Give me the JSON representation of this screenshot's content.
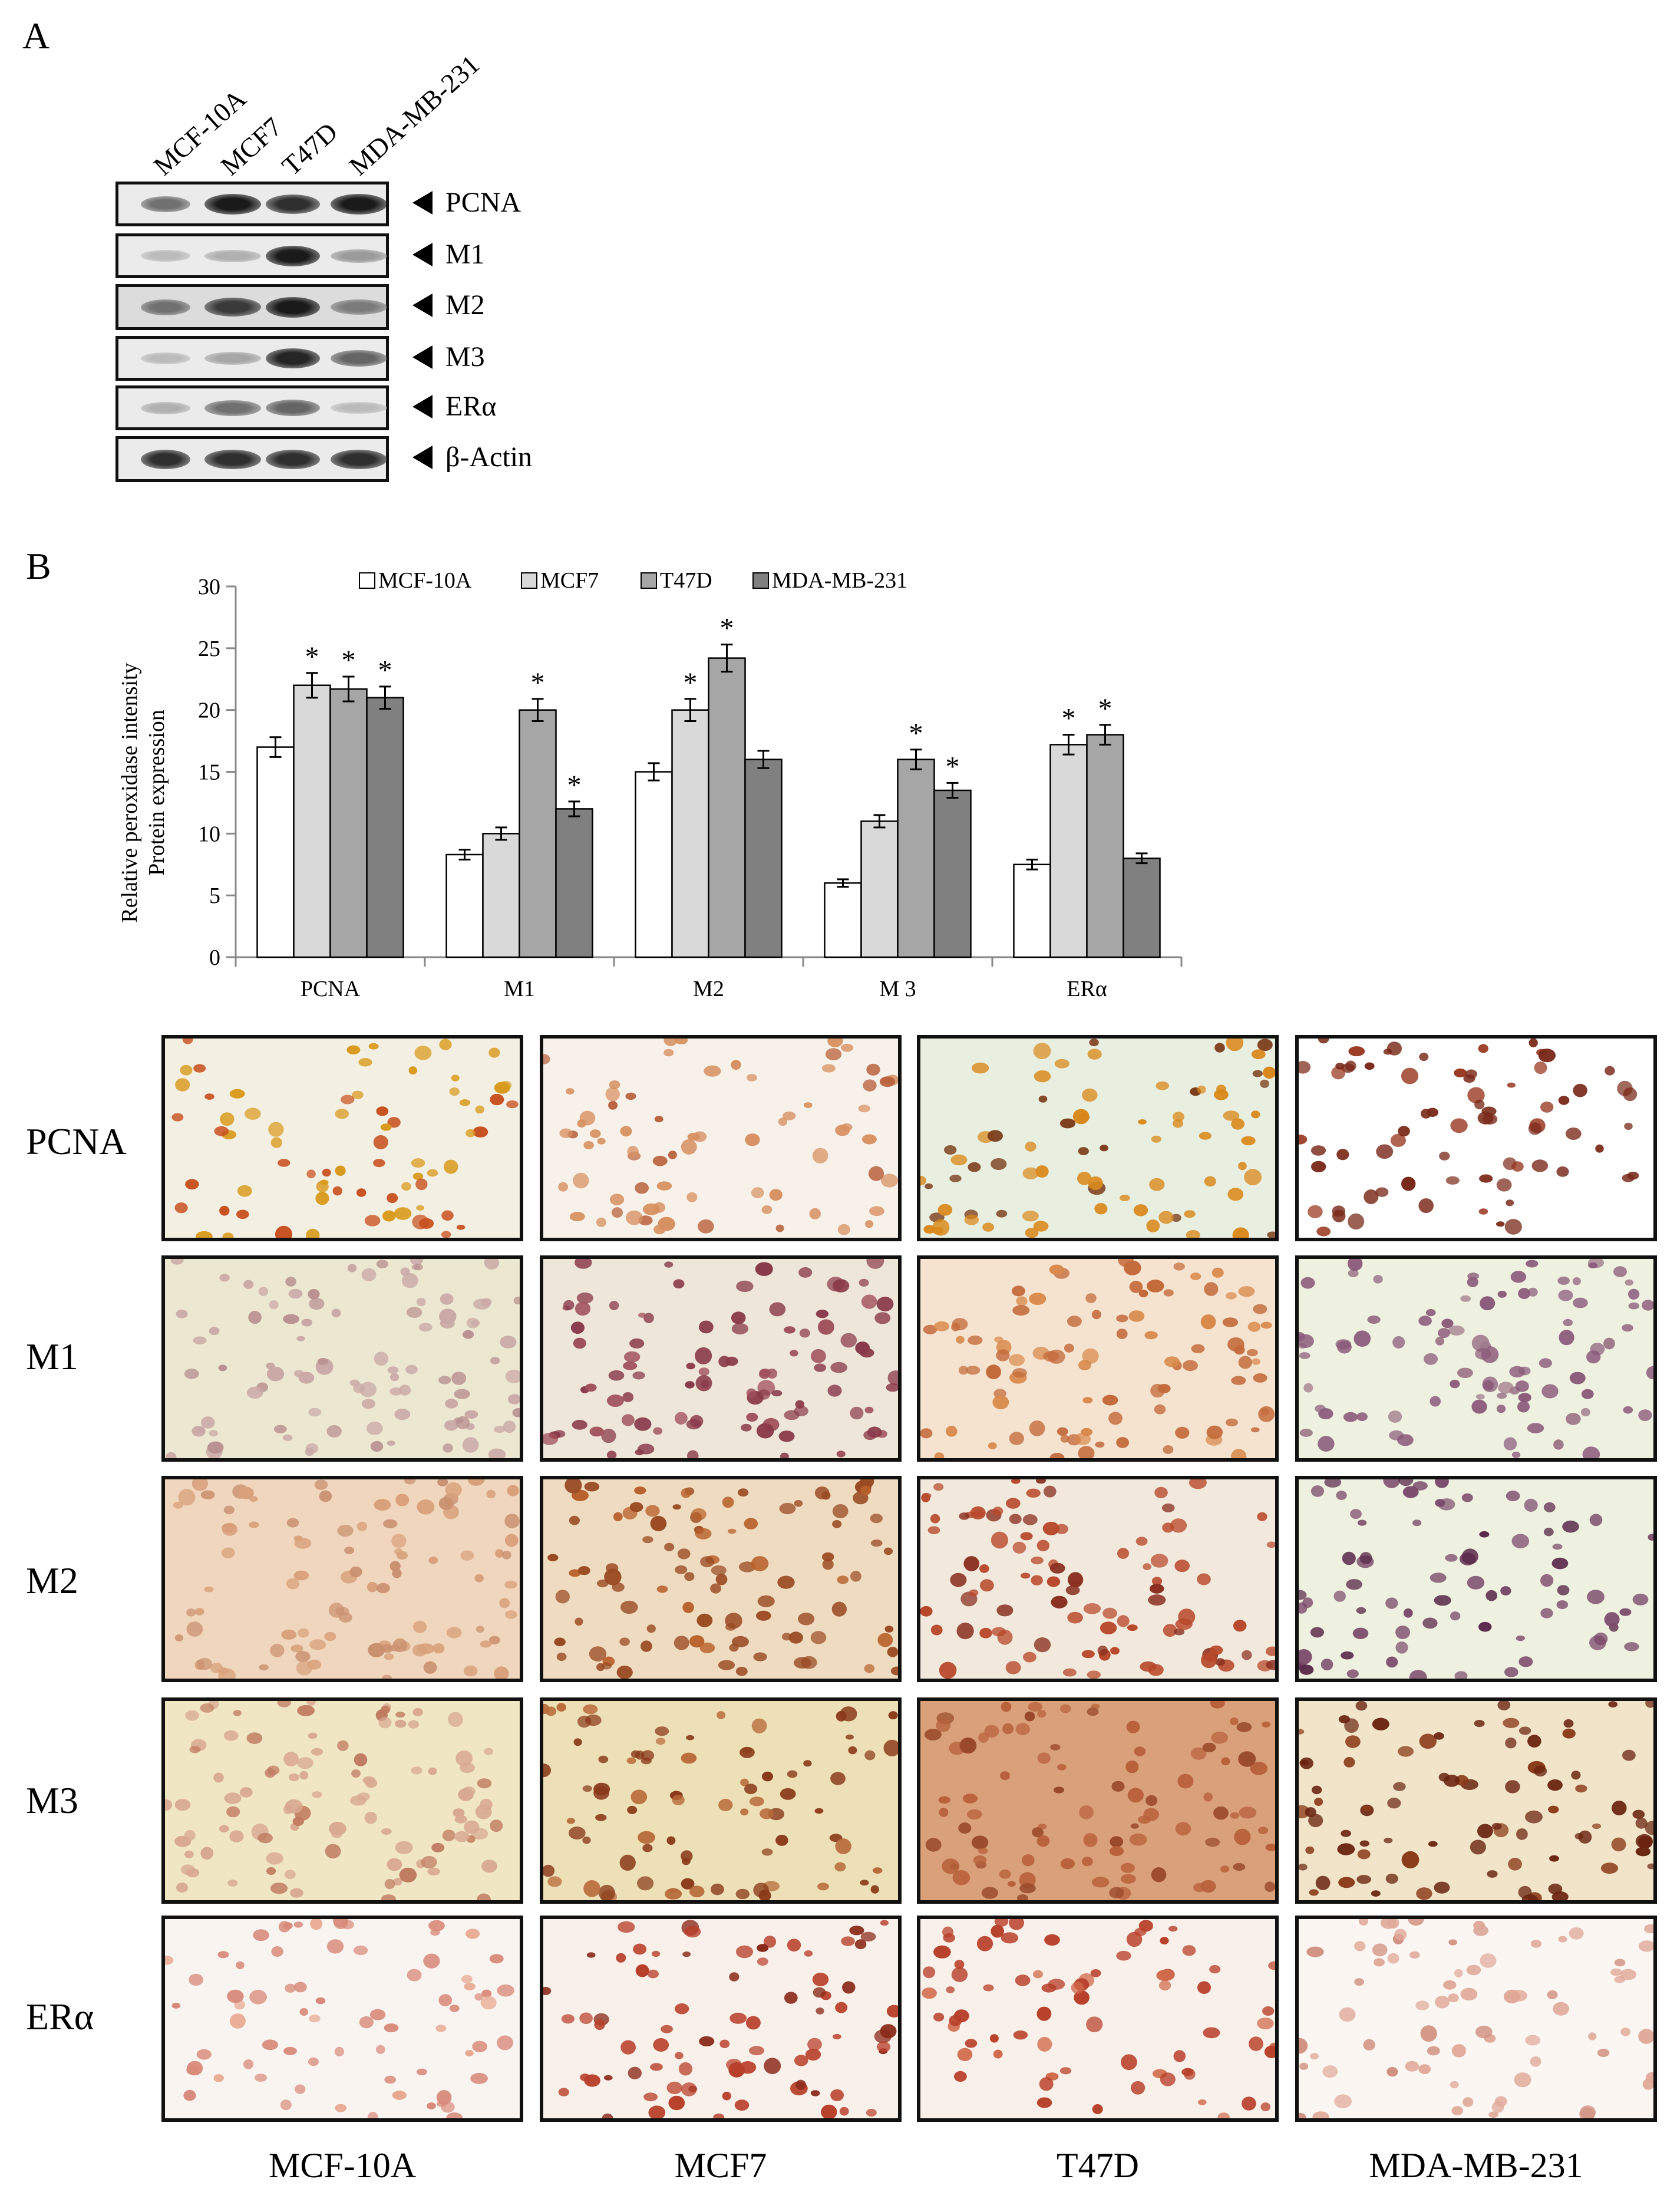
{
  "panel_letters": {
    "a": "A",
    "b": "B"
  },
  "blot": {
    "lanes": [
      "MCF-10A",
      "MCF7",
      "T47D",
      "MDA-MB-231"
    ],
    "rows": [
      {
        "label": "PCNA",
        "intensity": [
          0.55,
          0.95,
          0.85,
          0.95
        ]
      },
      {
        "label": "M1",
        "intensity": [
          0.2,
          0.25,
          0.95,
          0.35
        ]
      },
      {
        "label": "M2",
        "intensity": [
          0.55,
          0.8,
          0.95,
          0.5
        ]
      },
      {
        "label": "M3",
        "intensity": [
          0.2,
          0.3,
          0.9,
          0.6
        ]
      },
      {
        "label": "ERα",
        "intensity": [
          0.25,
          0.55,
          0.6,
          0.2
        ]
      },
      {
        "label": "β-Actin",
        "intensity": [
          0.85,
          0.85,
          0.85,
          0.85
        ]
      }
    ]
  },
  "chart_data": {
    "type": "bar",
    "title": "",
    "ylabel_line1": "Relative peroxidase intensity",
    "ylabel_line2": "Protein expression",
    "xlabel": "",
    "ylim": [
      0,
      30
    ],
    "yticks": [
      "0",
      "5",
      "10",
      "15",
      "20",
      "25",
      "30"
    ],
    "categories": [
      "PCNA",
      "M1",
      "M2",
      "M 3",
      "ERα"
    ],
    "legend_position": "top",
    "series": [
      {
        "name": "MCF-10A",
        "color": "#ffffff",
        "values": [
          17,
          8.3,
          15,
          6,
          7.5
        ],
        "errors": [
          0.8,
          0.4,
          0.7,
          0.3,
          0.4
        ],
        "significant": [
          false,
          false,
          false,
          false,
          false
        ]
      },
      {
        "name": "MCF7",
        "color": "#d9d9d9",
        "values": [
          22,
          10,
          20,
          11,
          17.2
        ],
        "errors": [
          1.0,
          0.5,
          0.9,
          0.5,
          0.8
        ],
        "significant": [
          true,
          false,
          true,
          false,
          true
        ]
      },
      {
        "name": "T47D",
        "color": "#a6a6a6",
        "values": [
          21.7,
          20,
          24.2,
          16,
          18
        ],
        "errors": [
          1.0,
          0.9,
          1.1,
          0.8,
          0.8
        ],
        "significant": [
          true,
          true,
          true,
          true,
          true
        ]
      },
      {
        "name": "MDA-MB-231",
        "color": "#808080",
        "values": [
          21,
          12,
          16,
          13.5,
          8
        ],
        "errors": [
          0.9,
          0.6,
          0.7,
          0.6,
          0.4
        ],
        "significant": [
          true,
          true,
          false,
          true,
          false
        ]
      }
    ],
    "significance_marker": "*"
  },
  "micrographs": {
    "rows": [
      "PCNA",
      "M1",
      "M2",
      "M3",
      "ERα"
    ],
    "columns": [
      "MCF-10A",
      "MCF7",
      "T47D",
      "MDA-MB-231"
    ],
    "tiles": [
      [
        {
          "bg": "#f3efe2",
          "nuc": "#d99a1c",
          "alt": "#c8501e"
        },
        {
          "bg": "#f8f1ea",
          "nuc": "#d79060",
          "alt": "#b8603a"
        },
        {
          "bg": "#e8efe0",
          "nuc": "#d9891c",
          "alt": "#7a3a18"
        },
        {
          "bg": "#ffffff",
          "nuc": "#7a2a1a",
          "alt": "#9a3a22"
        }
      ],
      [
        {
          "bg": "#ece7d0",
          "nuc": "#c9a8a6",
          "alt": "#b89090"
        },
        {
          "bg": "#eee6d8",
          "nuc": "#8a3a4a",
          "alt": "#a0505a"
        },
        {
          "bg": "#f5e3d0",
          "nuc": "#c46a3a",
          "alt": "#d9894a"
        },
        {
          "bg": "#eef0e0",
          "nuc": "#8a5a7a",
          "alt": "#a07a8a"
        }
      ],
      [
        {
          "bg": "#f0d6bc",
          "nuc": "#d8a07a",
          "alt": "#c99070"
        },
        {
          "bg": "#efdcc0",
          "nuc": "#9a4a22",
          "alt": "#b8602a"
        },
        {
          "bg": "#f2e8dc",
          "nuc": "#b8482a",
          "alt": "#8a3020"
        },
        {
          "bg": "#eef0e0",
          "nuc": "#7a4a6a",
          "alt": "#5a2a4a"
        }
      ],
      [
        {
          "bg": "#f0e6c4",
          "nuc": "#d8a890",
          "alt": "#c07a60"
        },
        {
          "bg": "#eee0b6",
          "nuc": "#8a3a1a",
          "alt": "#b86a3a"
        },
        {
          "bg": "#d9a07a",
          "nuc": "#b8603a",
          "alt": "#9a4a2a"
        },
        {
          "bg": "#f2e4c8",
          "nuc": "#6a2410",
          "alt": "#8a3a18"
        }
      ],
      [
        {
          "bg": "#faf4f0",
          "nuc": "#d88a7a",
          "alt": "#e8a890"
        },
        {
          "bg": "#faf0ea",
          "nuc": "#b8402a",
          "alt": "#8a2a1a"
        },
        {
          "bg": "#faf0ea",
          "nuc": "#b8402a",
          "alt": "#d06a4a"
        },
        {
          "bg": "#fbf6f2",
          "nuc": "#e0a898",
          "alt": "#d09080"
        }
      ]
    ]
  }
}
